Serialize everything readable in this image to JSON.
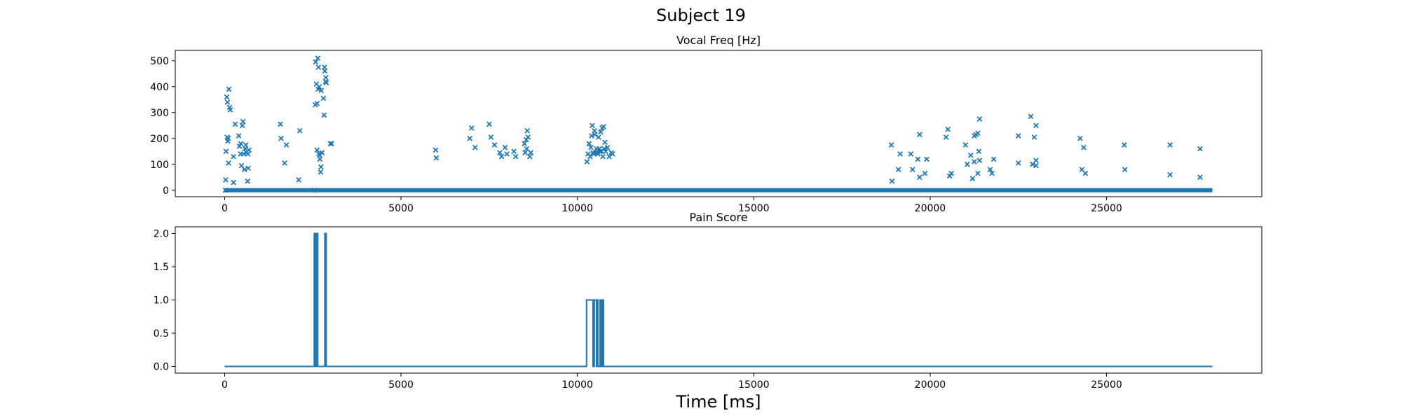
{
  "figure": {
    "suptitle": "Subject 19"
  },
  "chart_data": [
    {
      "type": "scatter",
      "title": "Vocal Freq [Hz]",
      "xlabel": "",
      "ylabel": "",
      "xlim": [
        -1400,
        29400
      ],
      "ylim": [
        -25,
        540
      ],
      "xticks": [
        0,
        5000,
        10000,
        15000,
        20000,
        25000
      ],
      "yticks": [
        0,
        100,
        200,
        300,
        400,
        500
      ],
      "grid": false,
      "marker": "x",
      "color": "#1f77b4",
      "baseline": {
        "x_start": 0,
        "x_end": 28000,
        "y": 0
      },
      "points": [
        [
          20,
          0
        ],
        [
          30,
          40
        ],
        [
          40,
          150
        ],
        [
          60,
          360
        ],
        [
          70,
          205
        ],
        [
          80,
          340
        ],
        [
          90,
          190
        ],
        [
          100,
          200
        ],
        [
          110,
          105
        ],
        [
          120,
          390
        ],
        [
          140,
          320
        ],
        [
          160,
          310
        ],
        [
          250,
          30
        ],
        [
          250,
          130
        ],
        [
          300,
          255
        ],
        [
          400,
          210
        ],
        [
          420,
          170
        ],
        [
          450,
          140
        ],
        [
          460,
          180
        ],
        [
          480,
          95
        ],
        [
          500,
          250
        ],
        [
          520,
          265
        ],
        [
          540,
          140
        ],
        [
          560,
          80
        ],
        [
          580,
          160
        ],
        [
          600,
          175
        ],
        [
          620,
          145
        ],
        [
          650,
          35
        ],
        [
          660,
          140
        ],
        [
          670,
          85
        ],
        [
          690,
          155
        ],
        [
          1580,
          255
        ],
        [
          1600,
          200
        ],
        [
          1700,
          105
        ],
        [
          1750,
          175
        ],
        [
          2100,
          40
        ],
        [
          2130,
          230
        ],
        [
          2550,
          0
        ],
        [
          2570,
          330
        ],
        [
          2580,
          495
        ],
        [
          2600,
          410
        ],
        [
          2620,
          335
        ],
        [
          2620,
          155
        ],
        [
          2640,
          510
        ],
        [
          2650,
          390
        ],
        [
          2660,
          475
        ],
        [
          2670,
          140
        ],
        [
          2680,
          400
        ],
        [
          2700,
          120
        ],
        [
          2700,
          135
        ],
        [
          2720,
          70
        ],
        [
          2730,
          90
        ],
        [
          2740,
          385
        ],
        [
          2760,
          145
        ],
        [
          2800,
          355
        ],
        [
          2820,
          290
        ],
        [
          2830,
          475
        ],
        [
          2840,
          460
        ],
        [
          2860,
          420
        ],
        [
          2870,
          435
        ],
        [
          2880,
          415
        ],
        [
          3000,
          180
        ],
        [
          3030,
          180
        ],
        [
          5980,
          155
        ],
        [
          6000,
          125
        ],
        [
          6950,
          200
        ],
        [
          7000,
          240
        ],
        [
          7100,
          165
        ],
        [
          7500,
          255
        ],
        [
          7550,
          205
        ],
        [
          7650,
          175
        ],
        [
          7800,
          145
        ],
        [
          7850,
          130
        ],
        [
          7950,
          165
        ],
        [
          8000,
          140
        ],
        [
          8200,
          150
        ],
        [
          8250,
          130
        ],
        [
          8500,
          180
        ],
        [
          8520,
          145
        ],
        [
          8550,
          195
        ],
        [
          8560,
          160
        ],
        [
          8580,
          230
        ],
        [
          8600,
          205
        ],
        [
          8650,
          130
        ],
        [
          8680,
          145
        ],
        [
          10270,
          110
        ],
        [
          10300,
          140
        ],
        [
          10330,
          180
        ],
        [
          10360,
          130
        ],
        [
          10380,
          165
        ],
        [
          10400,
          210
        ],
        [
          10420,
          250
        ],
        [
          10440,
          145
        ],
        [
          10460,
          140
        ],
        [
          10480,
          230
        ],
        [
          10500,
          215
        ],
        [
          10520,
          145
        ],
        [
          10540,
          160
        ],
        [
          10560,
          145
        ],
        [
          10580,
          140
        ],
        [
          10600,
          205
        ],
        [
          10620,
          160
        ],
        [
          10640,
          150
        ],
        [
          10660,
          225
        ],
        [
          10680,
          150
        ],
        [
          10700,
          240
        ],
        [
          10720,
          130
        ],
        [
          10740,
          245
        ],
        [
          10760,
          160
        ],
        [
          10780,
          185
        ],
        [
          10800,
          150
        ],
        [
          10850,
          165
        ],
        [
          10900,
          130
        ],
        [
          10960,
          145
        ],
        [
          11000,
          140
        ],
        [
          18900,
          175
        ],
        [
          18920,
          35
        ],
        [
          19100,
          80
        ],
        [
          19150,
          140
        ],
        [
          19450,
          140
        ],
        [
          19500,
          80
        ],
        [
          19650,
          120
        ],
        [
          19700,
          215
        ],
        [
          19700,
          50
        ],
        [
          19850,
          65
        ],
        [
          19900,
          120
        ],
        [
          20450,
          205
        ],
        [
          20500,
          235
        ],
        [
          20550,
          55
        ],
        [
          20600,
          65
        ],
        [
          21000,
          175
        ],
        [
          21050,
          100
        ],
        [
          21150,
          135
        ],
        [
          21200,
          45
        ],
        [
          21250,
          110
        ],
        [
          21250,
          210
        ],
        [
          21300,
          215
        ],
        [
          21350,
          220
        ],
        [
          21350,
          65
        ],
        [
          21380,
          150
        ],
        [
          21400,
          275
        ],
        [
          21400,
          115
        ],
        [
          21700,
          80
        ],
        [
          21750,
          65
        ],
        [
          21800,
          120
        ],
        [
          22500,
          210
        ],
        [
          22500,
          105
        ],
        [
          22850,
          285
        ],
        [
          22900,
          100
        ],
        [
          22950,
          205
        ],
        [
          23000,
          95
        ],
        [
          23000,
          250
        ],
        [
          23000,
          115
        ],
        [
          24250,
          200
        ],
        [
          24300,
          80
        ],
        [
          24350,
          165
        ],
        [
          24400,
          65
        ],
        [
          25500,
          175
        ],
        [
          25520,
          80
        ],
        [
          26800,
          175
        ],
        [
          26800,
          60
        ],
        [
          27650,
          160
        ],
        [
          27650,
          50
        ]
      ]
    },
    {
      "type": "line",
      "title": "Pain Score",
      "xlabel": "Time [ms]",
      "ylabel": "",
      "xlim": [
        -1400,
        29400
      ],
      "ylim": [
        -0.1,
        2.1
      ],
      "xticks": [
        0,
        5000,
        10000,
        15000,
        20000,
        25000
      ],
      "xtick_labels": [
        "0",
        "5000",
        "10000",
        "15000",
        "20000",
        "25000"
      ],
      "yticks": [
        0,
        0.5,
        1,
        1.5,
        2
      ],
      "ytick_labels": [
        "0.0",
        "0.5",
        "1.0",
        "1.5",
        "2.0"
      ],
      "grid": false,
      "color": "#1f77b4",
      "series": [
        {
          "x": [
            0,
            2540,
            2540,
            2580,
            2580,
            2600,
            2600,
            2640,
            2640,
            2660,
            2660,
            2840,
            2840,
            2880,
            2880,
            10260,
            10260,
            10440,
            10440,
            10480,
            10480,
            10540,
            10540,
            10560,
            10560,
            10580,
            10580,
            10600,
            10600,
            10640,
            10640,
            10660,
            10660,
            10700,
            10700,
            10740,
            10740,
            28000
          ],
          "y": [
            0,
            0,
            2,
            2,
            0,
            0,
            2,
            2,
            0,
            0,
            0,
            0,
            2,
            2,
            0,
            0,
            1,
            1,
            0,
            0,
            1,
            1,
            0,
            0,
            1,
            1,
            0,
            0,
            0,
            0,
            1,
            1,
            0,
            0,
            1,
            1,
            0,
            0
          ]
        }
      ]
    }
  ]
}
